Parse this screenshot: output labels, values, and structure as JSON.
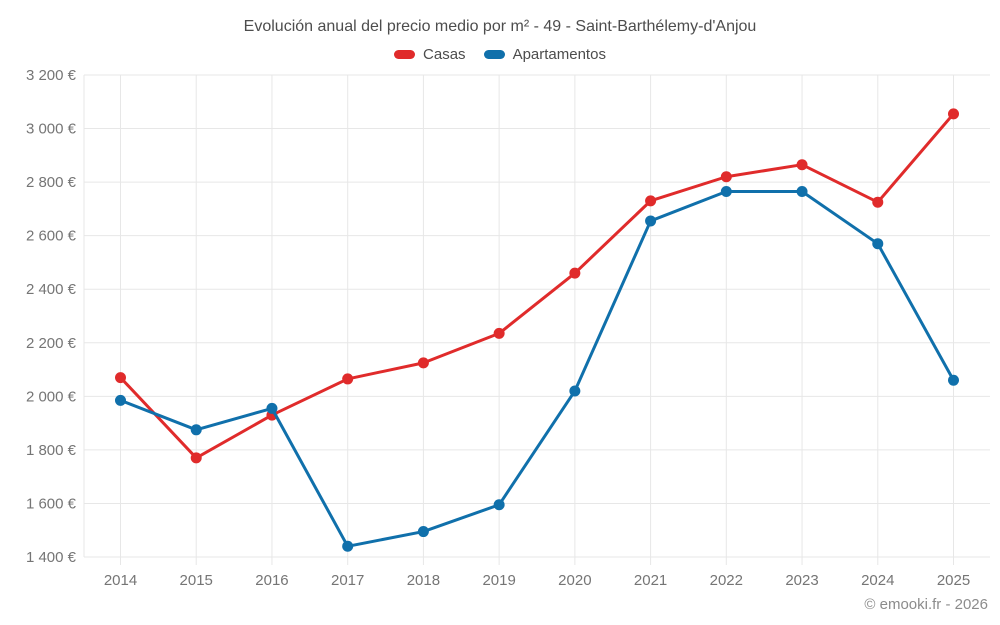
{
  "title": "Evolución anual del precio medio por m² - 49 - Saint-Barthélemy-d'Anjou",
  "watermark": "© emooki.fr - 2026",
  "colors": {
    "casas": "#e02b2b",
    "apartamentos": "#1070ab",
    "grid": "#e7e7e7",
    "axis_text": "#757575",
    "title_text": "#4d4d4d",
    "watermark_text": "#8c8c8c",
    "background": "#ffffff"
  },
  "chart_data": {
    "type": "line",
    "title": "Evolución anual del precio medio por m² - 49 - Saint-Barthélemy-d'Anjou",
    "x": [
      2014,
      2015,
      2016,
      2017,
      2018,
      2019,
      2020,
      2021,
      2022,
      2023,
      2024,
      2025
    ],
    "series": [
      {
        "name": "Casas",
        "color": "#e02b2b",
        "values": [
          2070,
          1770,
          1930,
          2065,
          2125,
          2235,
          2460,
          2730,
          2820,
          2865,
          2725,
          3055
        ]
      },
      {
        "name": "Apartamentos",
        "color": "#1070ab",
        "values": [
          1985,
          1875,
          1955,
          1440,
          1495,
          1595,
          2020,
          2655,
          2765,
          2765,
          2570,
          2060
        ]
      }
    ],
    "xlabel": "",
    "ylabel": "",
    "ylim": [
      1400,
      3200
    ],
    "yticks": [
      1400,
      1600,
      1800,
      2000,
      2200,
      2400,
      2600,
      2800,
      3000,
      3200
    ],
    "ytick_labels": [
      "1 400 €",
      "1 600 €",
      "1 800 €",
      "2 000 €",
      "2 200 €",
      "2 400 €",
      "2 600 €",
      "2 800 €",
      "3 000 €",
      "3 200 €"
    ],
    "grid": true,
    "legend_position": "top",
    "marker": "circle"
  }
}
